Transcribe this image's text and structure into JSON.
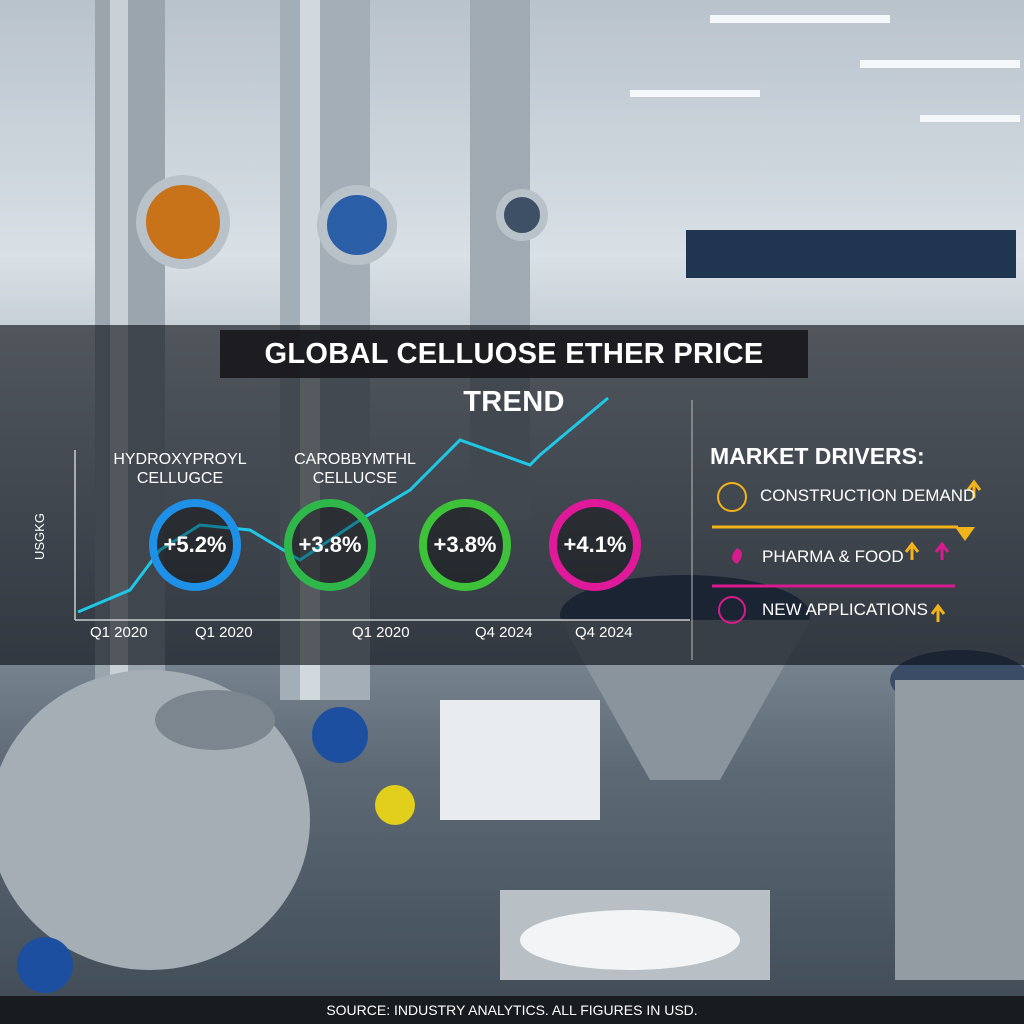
{
  "title": "GLOBAL CELLUOSE ETHER PRICE TREND",
  "chart": {
    "y_axis_label": "USGKG",
    "series_labels": [
      "HYDROXYPROYL CELLUGCE",
      "CAROBBYMTHL CELLUCSE"
    ],
    "badges": [
      "+5.2%",
      "+3.8%",
      "+3.8%",
      "+4.1%"
    ],
    "x_labels": [
      "Q1 2020",
      "Q1 2020",
      "Q1 2020",
      "Q4 2024",
      "Q4 2024"
    ]
  },
  "drivers": {
    "heading": "MARKET DRIVERS:",
    "items": [
      "CONSTRUCTION DEMAND",
      "PHARMA & FOOD",
      "NEW APPLICATIONS"
    ]
  },
  "footer": "SOURCE: INDUSTRY ANALYTICS. ALL FIGURES IN USD."
}
